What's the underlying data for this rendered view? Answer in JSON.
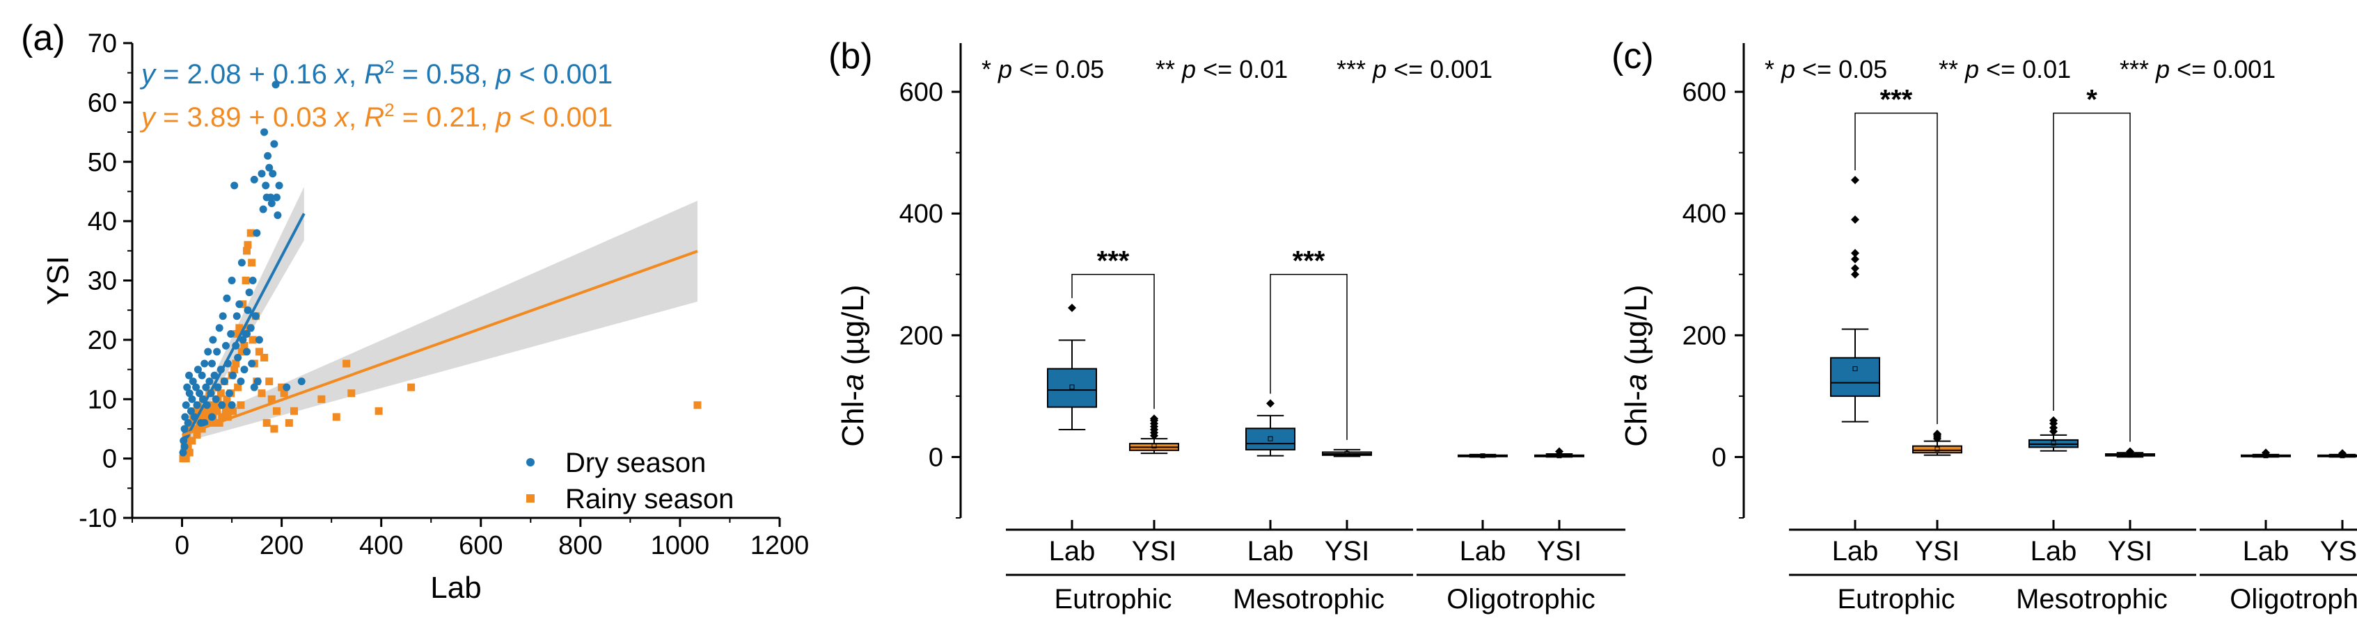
{
  "colors": {
    "dry": "#1f78b4",
    "rainy": "#f28a22",
    "band": "#d3d3d3",
    "ysi_box": "#f28a22",
    "lab_box": "#1a6fa3"
  },
  "panel_a": {
    "label": "(a)",
    "xlabel": "Lab",
    "ylabel": "YSI",
    "eq_dry": [
      "y",
      " = 2.08 + 0.16 ",
      "x",
      ", ",
      "R",
      "2",
      " = 0.58, ",
      "p",
      " < 0.001"
    ],
    "eq_rainy": [
      "y",
      " = 3.89 + 0.03 ",
      "x",
      ", ",
      "R",
      "2",
      " = 0.21, ",
      "p",
      " < 0.001"
    ],
    "legend": {
      "dry": "Dry season",
      "rainy": "Rainy season"
    }
  },
  "chart_data": [
    {
      "type": "scatter",
      "panel": "a",
      "xlabel": "Lab",
      "ylabel": "YSI",
      "xlim": [
        -100,
        1200
      ],
      "ylim": [
        -10,
        70
      ],
      "xticks": [
        "0",
        "200",
        "400",
        "600",
        "800",
        "1000",
        "1200"
      ],
      "yticks": [
        "-10",
        "0",
        "10",
        "20",
        "30",
        "40",
        "50",
        "60",
        "70"
      ],
      "xtick_values": [
        0,
        200,
        400,
        600,
        800,
        1000,
        1200
      ],
      "ytick_values": [
        -10,
        0,
        10,
        20,
        30,
        40,
        50,
        60,
        70
      ],
      "series": [
        {
          "name": "Dry season",
          "marker": "circle",
          "fit": {
            "intercept": 2.08,
            "slope": 0.16,
            "x_range": [
              0,
              245
            ]
          },
          "points": [
            [
              2,
              1
            ],
            [
              3,
              3
            ],
            [
              5,
              2
            ],
            [
              5,
              5
            ],
            [
              6,
              7
            ],
            [
              8,
              4
            ],
            [
              8,
              9
            ],
            [
              10,
              12
            ],
            [
              12,
              6
            ],
            [
              14,
              14
            ],
            [
              15,
              11
            ],
            [
              18,
              8
            ],
            [
              20,
              10
            ],
            [
              22,
              13
            ],
            [
              25,
              7
            ],
            [
              28,
              12
            ],
            [
              30,
              9
            ],
            [
              32,
              15
            ],
            [
              35,
              11
            ],
            [
              38,
              6
            ],
            [
              40,
              14
            ],
            [
              42,
              10
            ],
            [
              45,
              16
            ],
            [
              48,
              12
            ],
            [
              50,
              9
            ],
            [
              52,
              18
            ],
            [
              55,
              13
            ],
            [
              58,
              11
            ],
            [
              60,
              16
            ],
            [
              62,
              20
            ],
            [
              65,
              14
            ],
            [
              68,
              10
            ],
            [
              70,
              18
            ],
            [
              72,
              12
            ],
            [
              75,
              22
            ],
            [
              78,
              15
            ],
            [
              80,
              9
            ],
            [
              82,
              24
            ],
            [
              85,
              13
            ],
            [
              88,
              19
            ],
            [
              90,
              27
            ],
            [
              92,
              16
            ],
            [
              95,
              11
            ],
            [
              98,
              21
            ],
            [
              100,
              30
            ],
            [
              102,
              14
            ],
            [
              105,
              46
            ],
            [
              108,
              19
            ],
            [
              110,
              24
            ],
            [
              112,
              17
            ],
            [
              115,
              26
            ],
            [
              118,
              13
            ],
            [
              120,
              33
            ],
            [
              122,
              20
            ],
            [
              125,
              15
            ],
            [
              128,
              21
            ],
            [
              130,
              18
            ],
            [
              132,
              25
            ],
            [
              135,
              28
            ],
            [
              138,
              22
            ],
            [
              140,
              16
            ],
            [
              142,
              30
            ],
            [
              145,
              12
            ],
            [
              148,
              24
            ],
            [
              150,
              38
            ],
            [
              152,
              13
            ],
            [
              155,
              20
            ],
            [
              160,
              48
            ],
            [
              163,
              42
            ],
            [
              165,
              55
            ],
            [
              168,
              46
            ],
            [
              170,
              44
            ],
            [
              172,
              51
            ],
            [
              175,
              49
            ],
            [
              178,
              44
            ],
            [
              180,
              43
            ],
            [
              182,
              48
            ],
            [
              185,
              53
            ],
            [
              188,
              63
            ],
            [
              190,
              44
            ],
            [
              192,
              41
            ],
            [
              195,
              46
            ],
            [
              145,
              47
            ],
            [
              130,
              21
            ],
            [
              210,
              12
            ],
            [
              240,
              13
            ],
            [
              60,
              7
            ],
            [
              45,
              6
            ],
            [
              100,
              9
            ]
          ]
        },
        {
          "name": "Rainy season",
          "marker": "square",
          "fit": {
            "intercept": 3.89,
            "slope": 0.03,
            "x_range": [
              0,
              1035
            ]
          },
          "points": [
            [
              2,
              0
            ],
            [
              4,
              1
            ],
            [
              5,
              2
            ],
            [
              7,
              3
            ],
            [
              8,
              0
            ],
            [
              10,
              4
            ],
            [
              12,
              2
            ],
            [
              14,
              5
            ],
            [
              15,
              1
            ],
            [
              18,
              6
            ],
            [
              20,
              3
            ],
            [
              22,
              7
            ],
            [
              25,
              5
            ],
            [
              28,
              8
            ],
            [
              30,
              4
            ],
            [
              32,
              9
            ],
            [
              35,
              6
            ],
            [
              38,
              7
            ],
            [
              40,
              5
            ],
            [
              42,
              10
            ],
            [
              45,
              8
            ],
            [
              48,
              6
            ],
            [
              50,
              7
            ],
            [
              52,
              9
            ],
            [
              55,
              11
            ],
            [
              58,
              8
            ],
            [
              60,
              6
            ],
            [
              62,
              7
            ],
            [
              65,
              9
            ],
            [
              68,
              12
            ],
            [
              70,
              8
            ],
            [
              72,
              10
            ],
            [
              75,
              6
            ],
            [
              78,
              11
            ],
            [
              80,
              7
            ],
            [
              82,
              9
            ],
            [
              85,
              13
            ],
            [
              88,
              8
            ],
            [
              90,
              10
            ],
            [
              92,
              7
            ],
            [
              95,
              9
            ],
            [
              98,
              11
            ],
            [
              100,
              14
            ],
            [
              102,
              8
            ],
            [
              105,
              15
            ],
            [
              108,
              16
            ],
            [
              110,
              21
            ],
            [
              112,
              12
            ],
            [
              115,
              22
            ],
            [
              118,
              9
            ],
            [
              120,
              18
            ],
            [
              122,
              26
            ],
            [
              125,
              19
            ],
            [
              128,
              30
            ],
            [
              130,
              35
            ],
            [
              132,
              36
            ],
            [
              135,
              22
            ],
            [
              138,
              38
            ],
            [
              140,
              33
            ],
            [
              142,
              20
            ],
            [
              145,
              16
            ],
            [
              148,
              24
            ],
            [
              150,
              13
            ],
            [
              155,
              18
            ],
            [
              160,
              11
            ],
            [
              165,
              17
            ],
            [
              170,
              6
            ],
            [
              175,
              13
            ],
            [
              180,
              10
            ],
            [
              185,
              5
            ],
            [
              190,
              8
            ],
            [
              200,
              12
            ],
            [
              205,
              11
            ],
            [
              215,
              6
            ],
            [
              225,
              8
            ],
            [
              280,
              10
            ],
            [
              310,
              7
            ],
            [
              330,
              16
            ],
            [
              340,
              11
            ],
            [
              395,
              8
            ],
            [
              460,
              12
            ],
            [
              1035,
              9
            ]
          ]
        }
      ]
    },
    {
      "type": "box",
      "panel": "b",
      "label": "(b)",
      "ylabel": "Chl-a (µg/L)",
      "ylim": [
        -100,
        680
      ],
      "yticks": [
        "0",
        "200",
        "400",
        "600"
      ],
      "ytick_values": [
        0,
        200,
        400,
        600
      ],
      "significance_legend": [
        "* p <= 0.05",
        "** p <= 0.01",
        "*** p <= 0.001"
      ],
      "groups": [
        "Eutrophic",
        "Mesotrophic",
        "Oligotrophic"
      ],
      "sublabels": [
        "Lab",
        "YSI",
        "Lab",
        "YSI",
        "Lab",
        "YSI"
      ],
      "boxes": [
        {
          "group": "Eutrophic",
          "method": "Lab",
          "whisker_low": 45,
          "q1": 82,
          "median": 110,
          "q3": 145,
          "whisker_high": 192,
          "mean": 115,
          "outliers": [
            245
          ]
        },
        {
          "group": "Eutrophic",
          "method": "YSI",
          "whisker_low": 6,
          "q1": 11,
          "median": 16,
          "q3": 22,
          "whisker_high": 30,
          "mean": 18,
          "outliers": [
            35,
            40,
            45,
            50,
            55,
            60,
            63
          ]
        },
        {
          "group": "Mesotrophic",
          "method": "Lab",
          "whisker_low": 2,
          "q1": 12,
          "median": 22,
          "q3": 47,
          "whisker_high": 68,
          "mean": 30,
          "outliers": [
            88
          ]
        },
        {
          "group": "Mesotrophic",
          "method": "YSI",
          "whisker_low": 1,
          "q1": 3,
          "median": 5,
          "q3": 8,
          "whisker_high": 12,
          "mean": 6,
          "outliers": []
        },
        {
          "group": "Oligotrophic",
          "method": "Lab",
          "whisker_low": 0,
          "q1": 1,
          "median": 2,
          "q3": 3,
          "whisker_high": 4,
          "mean": 2,
          "outliers": []
        },
        {
          "group": "Oligotrophic",
          "method": "YSI",
          "whisker_low": 0,
          "q1": 1,
          "median": 2,
          "q3": 3,
          "whisker_high": 5,
          "mean": 2,
          "outliers": [
            9
          ]
        }
      ],
      "brackets": [
        {
          "group": "Eutrophic",
          "stars": "***",
          "top": 300
        },
        {
          "group": "Mesotrophic",
          "stars": "***",
          "top": 300
        }
      ]
    },
    {
      "type": "box",
      "panel": "c",
      "label": "(c)",
      "ylabel": "Chl-a (µg/L)",
      "ylim": [
        -100,
        680
      ],
      "yticks": [
        "0",
        "200",
        "400",
        "600"
      ],
      "ytick_values": [
        0,
        200,
        400,
        600
      ],
      "significance_legend": [
        "* p <= 0.05",
        "** p <= 0.01",
        "*** p <= 0.001"
      ],
      "groups": [
        "Eutrophic",
        "Mesotrophic",
        "Oligotrophic"
      ],
      "sublabels": [
        "Lab",
        "YSI",
        "Lab",
        "YSI",
        "Lab",
        "YSI"
      ],
      "boxes": [
        {
          "group": "Eutrophic",
          "method": "Lab",
          "whisker_low": 58,
          "q1": 100,
          "median": 122,
          "q3": 163,
          "whisker_high": 210,
          "mean": 145,
          "outliers": [
            300,
            310,
            325,
            335,
            390,
            455
          ]
        },
        {
          "group": "Eutrophic",
          "method": "YSI",
          "whisker_low": 3,
          "q1": 7,
          "median": 11,
          "q3": 18,
          "whisker_high": 26,
          "mean": 13,
          "outliers": [
            30,
            33,
            36,
            38
          ]
        },
        {
          "group": "Mesotrophic",
          "method": "Lab",
          "whisker_low": 10,
          "q1": 16,
          "median": 21,
          "q3": 28,
          "whisker_high": 36,
          "mean": 23,
          "outliers": [
            42,
            48,
            55,
            60
          ]
        },
        {
          "group": "Mesotrophic",
          "method": "YSI",
          "whisker_low": 0,
          "q1": 2,
          "median": 3,
          "q3": 5,
          "whisker_high": 7,
          "mean": 3,
          "outliers": [
            9
          ]
        },
        {
          "group": "Oligotrophic",
          "method": "Lab",
          "whisker_low": 0,
          "q1": 1,
          "median": 2,
          "q3": 3,
          "whisker_high": 4,
          "mean": 2,
          "outliers": [
            7
          ]
        },
        {
          "group": "Oligotrophic",
          "method": "YSI",
          "whisker_low": 0,
          "q1": 1,
          "median": 2,
          "q3": 3,
          "whisker_high": 4,
          "mean": 2,
          "outliers": [
            6
          ]
        }
      ],
      "brackets": [
        {
          "group": "Eutrophic",
          "stars": "***",
          "top": 565
        },
        {
          "group": "Mesotrophic",
          "stars": "*",
          "top": 565
        }
      ]
    }
  ]
}
